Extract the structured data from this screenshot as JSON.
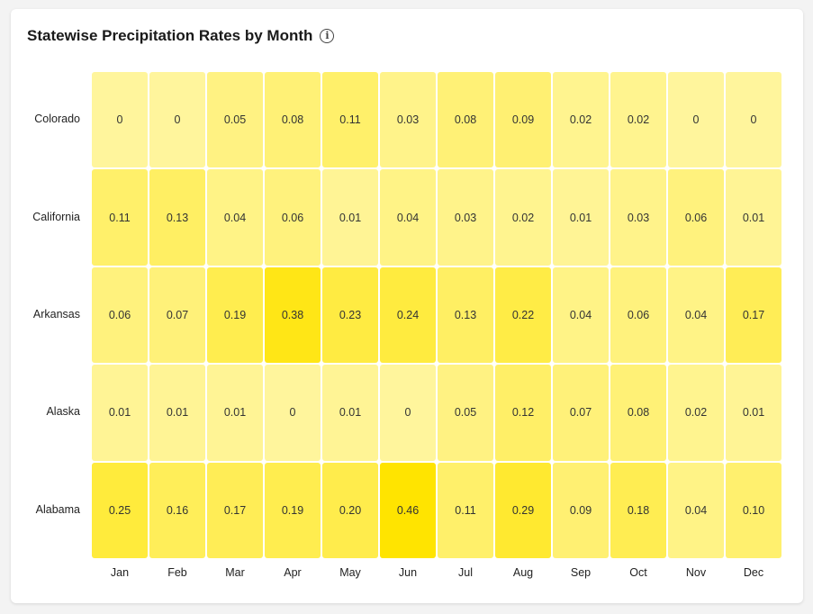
{
  "chart_data": {
    "type": "heatmap",
    "title": "Statewise Precipitation Rates by Month",
    "title_icon": "info-icon",
    "categories": [
      "Jan",
      "Feb",
      "Mar",
      "Apr",
      "May",
      "Jun",
      "Jul",
      "Aug",
      "Sep",
      "Oct",
      "Nov",
      "Dec"
    ],
    "rows": [
      "Colorado",
      "California",
      "Arkansas",
      "Alaska",
      "Alabama"
    ],
    "values": [
      [
        "0",
        "0",
        "0.05",
        "0.08",
        "0.11",
        "0.03",
        "0.08",
        "0.09",
        "0.02",
        "0.02",
        "0",
        "0"
      ],
      [
        "0.11",
        "0.13",
        "0.04",
        "0.06",
        "0.01",
        "0.04",
        "0.03",
        "0.02",
        "0.01",
        "0.03",
        "0.06",
        "0.01"
      ],
      [
        "0.06",
        "0.07",
        "0.19",
        "0.38",
        "0.23",
        "0.24",
        "0.13",
        "0.22",
        "0.04",
        "0.06",
        "0.04",
        "0.17"
      ],
      [
        "0.01",
        "0.01",
        "0.01",
        "0",
        "0.01",
        "0",
        "0.05",
        "0.12",
        "0.07",
        "0.08",
        "0.02",
        "0.01"
      ],
      [
        "0.25",
        "0.16",
        "0.17",
        "0.19",
        "0.20",
        "0.46",
        "0.11",
        "0.29",
        "0.09",
        "0.18",
        "0.04",
        "0.10"
      ]
    ],
    "color_min": "#fff59c",
    "color_max": "#ffe400"
  }
}
